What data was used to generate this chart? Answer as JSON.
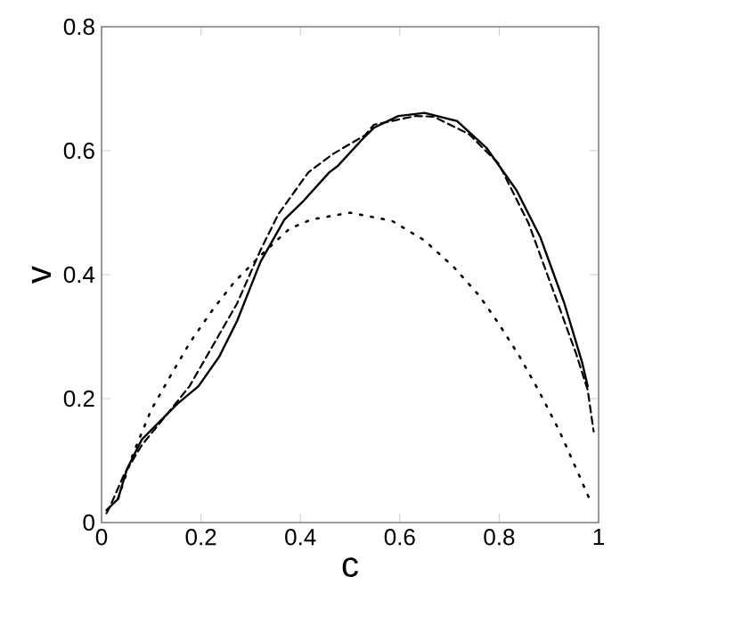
{
  "chart_data": {
    "type": "line",
    "xlabel": "c",
    "ylabel": "v",
    "xlim": [
      0,
      1
    ],
    "ylim": [
      0,
      0.8
    ],
    "xticks": [
      0,
      0.2,
      0.4,
      0.6,
      0.8,
      1
    ],
    "yticks": [
      0,
      0.2,
      0.4,
      0.6,
      0.8
    ],
    "series": [
      {
        "color": "#000000",
        "line_style": "solid",
        "x": [
          0.01,
          0.033,
          0.051,
          0.081,
          0.117,
          0.153,
          0.195,
          0.237,
          0.273,
          0.32,
          0.368,
          0.404,
          0.458,
          0.476,
          0.53,
          0.548,
          0.597,
          0.65,
          0.715,
          0.775,
          0.835,
          0.883,
          0.931,
          0.967,
          0.978
        ],
        "values": [
          0.02,
          0.038,
          0.086,
          0.134,
          0.163,
          0.192,
          0.22,
          0.268,
          0.326,
          0.421,
          0.489,
          0.517,
          0.565,
          0.576,
          0.623,
          0.637,
          0.656,
          0.661,
          0.648,
          0.604,
          0.536,
          0.46,
          0.354,
          0.258,
          0.22
        ]
      },
      {
        "color": "#000000",
        "line_style": "dashed",
        "x": [
          0.01,
          0.016,
          0.045,
          0.081,
          0.129,
          0.177,
          0.225,
          0.273,
          0.32,
          0.356,
          0.416,
          0.464,
          0.53,
          0.548,
          0.632,
          0.668,
          0.739,
          0.799,
          0.859,
          0.907,
          0.955,
          0.978,
          0.99
        ],
        "values": [
          0.015,
          0.024,
          0.077,
          0.125,
          0.172,
          0.22,
          0.287,
          0.354,
          0.44,
          0.498,
          0.565,
          0.594,
          0.625,
          0.642,
          0.656,
          0.655,
          0.627,
          0.579,
          0.483,
          0.378,
          0.272,
          0.214,
          0.147
        ]
      },
      {
        "color": "#000000",
        "line_style": "dotted",
        "x": [
          0.033,
          0.063,
          0.1,
          0.141,
          0.179,
          0.225,
          0.267,
          0.32,
          0.378,
          0.422,
          0.5,
          0.584,
          0.65,
          0.709,
          0.76,
          0.799,
          0.841,
          0.88,
          0.921,
          0.961,
          0.981
        ],
        "values": [
          0.038,
          0.11,
          0.182,
          0.24,
          0.292,
          0.345,
          0.388,
          0.431,
          0.474,
          0.489,
          0.5,
          0.487,
          0.455,
          0.412,
          0.366,
          0.321,
          0.268,
          0.212,
          0.148,
          0.076,
          0.039
        ]
      }
    ]
  }
}
